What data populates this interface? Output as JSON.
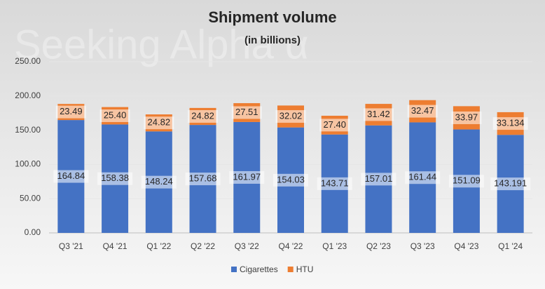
{
  "chart_data": {
    "type": "stacked_bar",
    "title": "Shipment volume",
    "subtitle": "(in billions)",
    "watermark": "Seeking Alpha α",
    "categories": [
      "Q3 '21",
      "Q4 '21",
      "Q1 '22",
      "Q2 '22",
      "Q3 '22",
      "Q4 '22",
      "Q1 '23",
      "Q2 '23",
      "Q3 '23",
      "Q4 '23",
      "Q1 '24"
    ],
    "series": [
      {
        "name": "Cigarettes",
        "color": "#4472c4",
        "values": [
          164.84,
          158.38,
          148.24,
          157.68,
          161.97,
          154.03,
          143.71,
          157.01,
          161.44,
          151.09,
          143.191
        ],
        "value_labels": [
          "164.84",
          "158.38",
          "148.24",
          "157.68",
          "161.97",
          "154.03",
          "143.71",
          "157.01",
          "161.44",
          "151.09",
          "143.191"
        ]
      },
      {
        "name": "HTU",
        "color": "#ed7d31",
        "values": [
          23.49,
          25.4,
          24.82,
          24.82,
          27.51,
          32.02,
          27.4,
          31.42,
          32.47,
          33.97,
          33.134
        ],
        "value_labels": [
          "23.49",
          "25.40",
          "24.82",
          "24.82",
          "27.51",
          "32.02",
          "27.40",
          "31.42",
          "32.47",
          "33.97",
          "33.134"
        ]
      }
    ],
    "ylim": [
      0,
      250
    ],
    "yticks": [
      {
        "value": 0,
        "label": "0.00"
      },
      {
        "value": 50,
        "label": "50.00"
      },
      {
        "value": 100,
        "label": "100.00"
      },
      {
        "value": 150,
        "label": "150.00"
      },
      {
        "value": 200,
        "label": "200.00"
      },
      {
        "value": 250,
        "label": "250.00"
      }
    ],
    "legend": "bottom"
  }
}
